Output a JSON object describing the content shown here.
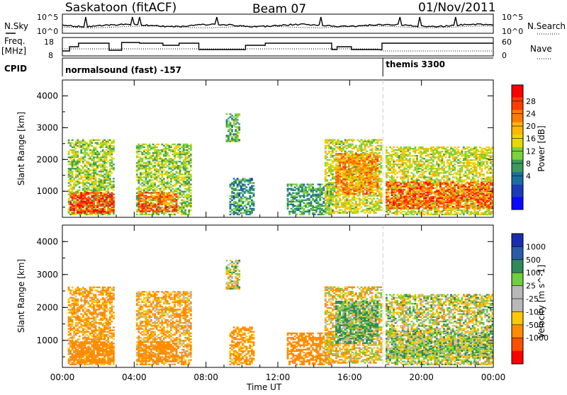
{
  "header": {
    "station": "Saskatoon (fitACF)",
    "beam": "Beam 07",
    "date": "01/Nov/2011"
  },
  "side_labels": {
    "nsky": "N.Sky",
    "nsearch": "N.Search",
    "freq": "Freq.",
    "mhz": "[MHz]",
    "cpid": "CPID",
    "nave": "Nave"
  },
  "noise_axis": {
    "left_top": "10^5",
    "left_bottom": "10^0",
    "right_top": "10^5",
    "right_bottom": "10^0"
  },
  "freq_axis": {
    "left_top": "18",
    "left_bottom": "8",
    "right_top": "60",
    "right_bottom": "0"
  },
  "cpid": {
    "mode1": "normalsound (fast) -157",
    "mode2": "themis 3300",
    "switch_hour": 17.85
  },
  "x_axis": {
    "title": "Time UT",
    "range_hours": [
      0,
      24
    ],
    "ticks": [
      "00:00",
      "04:00",
      "08:00",
      "12:00",
      "16:00",
      "20:00",
      "00:00"
    ]
  },
  "y_axis": {
    "title": "Slant Range [km]",
    "range_km": [
      180,
      4500
    ],
    "ticks": [
      "1000",
      "2000",
      "3000",
      "4000"
    ]
  },
  "power_colorbar": {
    "title": "Power [dB]",
    "labels": [
      "28",
      "24",
      "20",
      "16",
      "12",
      "8",
      "4"
    ],
    "colors": [
      "#ff0000",
      "#ff3c00",
      "#ff7a00",
      "#ffb700",
      "#e8d800",
      "#7ad23c",
      "#3c9a5a",
      "#1c6ea0",
      "#1a3cb8",
      "#0a0aff"
    ]
  },
  "velocity_colorbar": {
    "title": "Velocity [m s^-1]",
    "labels": [
      "1000",
      "500",
      "100",
      "25",
      "-25",
      "-100",
      "-500",
      "-1000"
    ],
    "colors": [
      "#1a2cb0",
      "#2a5ca8",
      "#2e8a5a",
      "#6fcf3c",
      "#b8b8b8",
      "#b8b8b8",
      "#ffc800",
      "#ff8c00",
      "#ff5000",
      "#ff0000"
    ]
  },
  "chart_data": {
    "type": "heatmap",
    "title": "Saskatoon (fitACF)",
    "xlabel": "Time UT",
    "ylabel": "Slant Range [km]",
    "xlim_hours": [
      0,
      24
    ],
    "ylim_km": [
      180,
      4500
    ],
    "power_range_db": [
      0,
      30
    ],
    "velocity_range_ms": [
      -1000,
      1000
    ],
    "echo_regions": [
      {
        "t0": 0.3,
        "t1": 2.9,
        "r0": 250,
        "r1": 2600,
        "power_db": 14,
        "velocity": -150
      },
      {
        "t0": 0.4,
        "t1": 2.9,
        "r0": 300,
        "r1": 950,
        "power_db": 27,
        "velocity": -300
      },
      {
        "t0": 4.1,
        "t1": 7.1,
        "r0": 250,
        "r1": 2500,
        "power_db": 14,
        "velocity": -120
      },
      {
        "t0": 4.2,
        "t1": 6.3,
        "r0": 350,
        "r1": 950,
        "power_db": 25,
        "velocity": -350
      },
      {
        "t0": 9.1,
        "t1": 9.8,
        "r0": 2550,
        "r1": 3450,
        "power_db": 12,
        "velocity": 0
      },
      {
        "t0": 9.3,
        "t1": 10.6,
        "r0": 250,
        "r1": 1400,
        "power_db": 9,
        "velocity": -200
      },
      {
        "t0": 12.5,
        "t1": 15.0,
        "r0": 250,
        "r1": 1200,
        "power_db": 10,
        "velocity": -250
      },
      {
        "t0": 14.6,
        "t1": 17.8,
        "r0": 300,
        "r1": 2600,
        "power_db": 16,
        "velocity": -60
      },
      {
        "t0": 15.2,
        "t1": 17.6,
        "r0": 900,
        "r1": 2200,
        "power_db": 22,
        "velocity": 120
      },
      {
        "t0": 18.0,
        "t1": 24.0,
        "r0": 250,
        "r1": 2400,
        "power_db": 16,
        "velocity": 0
      },
      {
        "t0": 18.0,
        "t1": 24.0,
        "r0": 450,
        "r1": 1300,
        "power_db": 25,
        "velocity": 40
      }
    ],
    "noise_sky_range": [
      1,
      100000
    ],
    "frequency_mhz_range": [
      8,
      18
    ],
    "nave_range": [
      0,
      60
    ]
  }
}
